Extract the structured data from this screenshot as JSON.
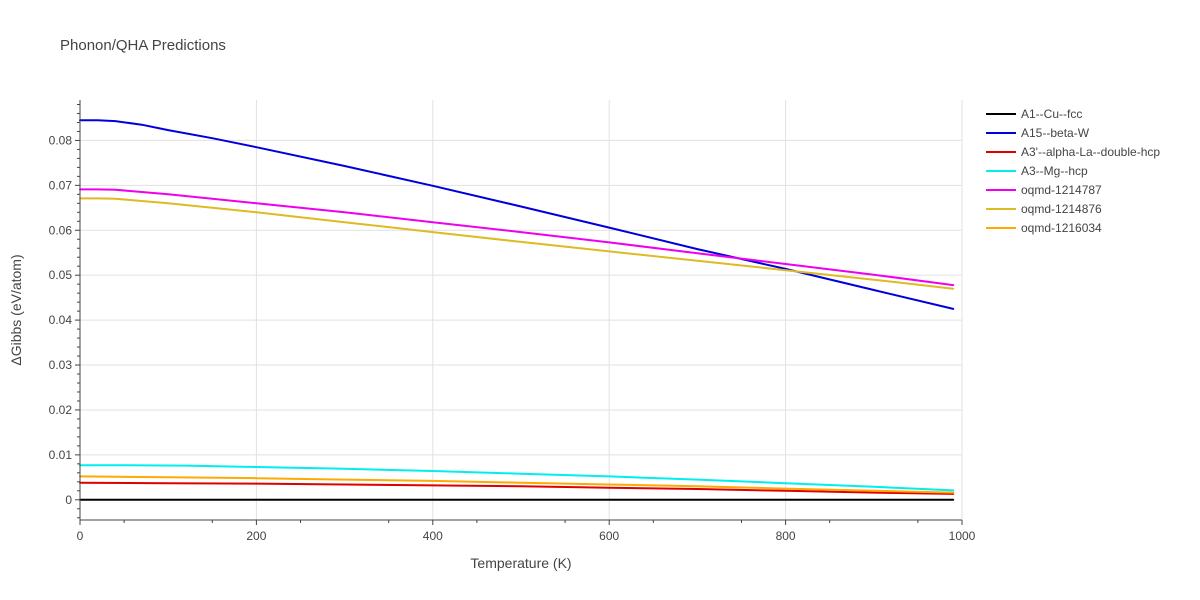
{
  "chart_data": {
    "type": "line",
    "title": "Phonon/QHA Predictions",
    "xlabel": "Temperature (K)",
    "ylabel": "ΔGibbs (eV/atom)",
    "xlim": [
      0,
      1000
    ],
    "ylim": [
      -0.0045,
      0.089
    ],
    "x_ticks": [
      0,
      200,
      400,
      600,
      800,
      1000
    ],
    "y_ticks": [
      0,
      0.01,
      0.02,
      0.03,
      0.04,
      0.05,
      0.06,
      0.07,
      0.08
    ],
    "y_tick_labels": [
      "0",
      "0.01",
      "0.02",
      "0.03",
      "0.04",
      "0.05",
      "0.06",
      "0.07",
      "0.08"
    ],
    "grid": true,
    "legend_position": "right",
    "series": [
      {
        "name": "A1--Cu--fcc",
        "color": "#000000",
        "x": [
          0,
          990
        ],
        "y": [
          0,
          0
        ]
      },
      {
        "name": "A15--beta-W",
        "color": "#0000dd",
        "x": [
          0,
          20,
          40,
          70,
          100,
          150,
          200,
          300,
          400,
          500,
          600,
          700,
          800,
          900,
          990
        ],
        "y": [
          0.0845,
          0.0845,
          0.0843,
          0.0835,
          0.0823,
          0.0805,
          0.0785,
          0.0743,
          0.0699,
          0.0653,
          0.0606,
          0.0558,
          0.0514,
          0.0467,
          0.0425
        ]
      },
      {
        "name": "A3'--alpha-La--double-hcp",
        "color": "#dd0000",
        "x": [
          0,
          100,
          200,
          300,
          400,
          500,
          600,
          700,
          800,
          900,
          990
        ],
        "y": [
          0.0038,
          0.0037,
          0.0036,
          0.0034,
          0.0032,
          0.003,
          0.0027,
          0.0024,
          0.002,
          0.0016,
          0.0013
        ]
      },
      {
        "name": "A3--Mg--hcp",
        "color": "#00eeee",
        "x": [
          0,
          50,
          120,
          200,
          300,
          400,
          500,
          600,
          700,
          800,
          900,
          990
        ],
        "y": [
          0.0077,
          0.0077,
          0.0076,
          0.0073,
          0.0069,
          0.0064,
          0.0058,
          0.0052,
          0.0045,
          0.0037,
          0.0029,
          0.0021
        ]
      },
      {
        "name": "oqmd-1214787",
        "color": "#ee00ee",
        "x": [
          0,
          20,
          40,
          60,
          100,
          200,
          300,
          400,
          500,
          600,
          700,
          800,
          900,
          990
        ],
        "y": [
          0.0691,
          0.0691,
          0.069,
          0.0687,
          0.068,
          0.066,
          0.064,
          0.0618,
          0.0596,
          0.0573,
          0.0549,
          0.0525,
          0.0501,
          0.0478
        ]
      },
      {
        "name": "oqmd-1214876",
        "color": "#ddbb22",
        "x": [
          0,
          20,
          40,
          60,
          100,
          200,
          300,
          400,
          500,
          600,
          700,
          800,
          900,
          990
        ],
        "y": [
          0.0671,
          0.0671,
          0.067,
          0.0667,
          0.066,
          0.064,
          0.0618,
          0.0596,
          0.0574,
          0.0553,
          0.0532,
          0.0511,
          0.049,
          0.047
        ]
      },
      {
        "name": "oqmd-1216034",
        "color": "#ffaa00",
        "x": [
          0,
          100,
          200,
          300,
          400,
          500,
          600,
          700,
          800,
          900,
          990
        ],
        "y": [
          0.0052,
          0.005,
          0.0048,
          0.0045,
          0.0042,
          0.0038,
          0.0034,
          0.003,
          0.0025,
          0.002,
          0.0016
        ]
      }
    ]
  }
}
